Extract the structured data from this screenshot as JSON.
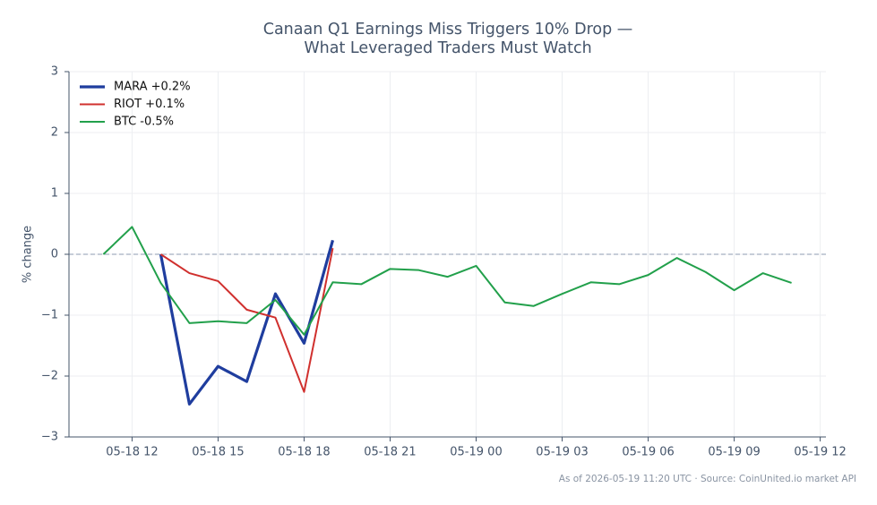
{
  "chart_data": {
    "type": "line",
    "title": "Canaan Q1 Earnings Miss Triggers 10% Drop — What Leveraged Traders Must Watch",
    "y_label": "% change",
    "footnote": "As of 2026-05-19 11:20 UTC · Source: CoinUnited.io market API",
    "xlim": [
      "05-18 09:48",
      "05-19 12:12"
    ],
    "xticks": [
      "05-18 12",
      "05-18 15",
      "05-18 18",
      "05-18 21",
      "05-19 00",
      "05-19 03",
      "05-19 06",
      "05-19 09",
      "05-19 12"
    ],
    "ylim": [
      -3,
      3
    ],
    "yticks": [
      {
        "value": -3,
        "label": "−3"
      },
      {
        "value": -2,
        "label": "−2"
      },
      {
        "value": -1,
        "label": "−1"
      },
      0,
      1,
      2,
      3
    ],
    "reference_line": 0,
    "grid": true,
    "legend": "upper-left",
    "series": [
      {
        "name": "MARA +0.2%",
        "color": "#1f3d9e",
        "linewidth": 3.2,
        "x": [
          "05-18 13",
          "05-18 14",
          "05-18 15",
          "05-18 16",
          "05-18 17",
          "05-18 18",
          "05-18 19"
        ],
        "values": [
          0.0,
          -2.46,
          -1.84,
          -2.09,
          -0.65,
          -1.46,
          0.23
        ]
      },
      {
        "name": "RIOT +0.1%",
        "color": "#d0302e",
        "linewidth": 2,
        "x": [
          "05-18 13",
          "05-18 14",
          "05-18 15",
          "05-18 16",
          "05-18 17",
          "05-18 18",
          "05-18 19"
        ],
        "values": [
          0.0,
          -0.31,
          -0.44,
          -0.91,
          -1.04,
          -2.26,
          0.1
        ]
      },
      {
        "name": "BTC -0.5%",
        "color": "#22a04b",
        "linewidth": 2,
        "x": [
          "05-18 11",
          "05-18 12",
          "05-18 13",
          "05-18 14",
          "05-18 15",
          "05-18 16",
          "05-18 17",
          "05-18 18",
          "05-18 19",
          "05-18 20",
          "05-18 21",
          "05-18 22",
          "05-18 23",
          "05-19 00",
          "05-19 01",
          "05-19 02",
          "05-19 03",
          "05-19 04",
          "05-19 05",
          "05-19 06",
          "05-19 07",
          "05-19 08",
          "05-19 09",
          "05-19 10",
          "05-19 11"
        ],
        "values": [
          0.0,
          0.45,
          -0.47,
          -1.13,
          -1.1,
          -1.13,
          -0.75,
          -1.32,
          -0.46,
          -0.49,
          -0.24,
          -0.26,
          -0.37,
          -0.19,
          -0.79,
          -0.85,
          -0.65,
          -0.46,
          -0.49,
          -0.34,
          -0.06,
          -0.29,
          -0.59,
          -0.31,
          -0.47
        ]
      }
    ]
  }
}
